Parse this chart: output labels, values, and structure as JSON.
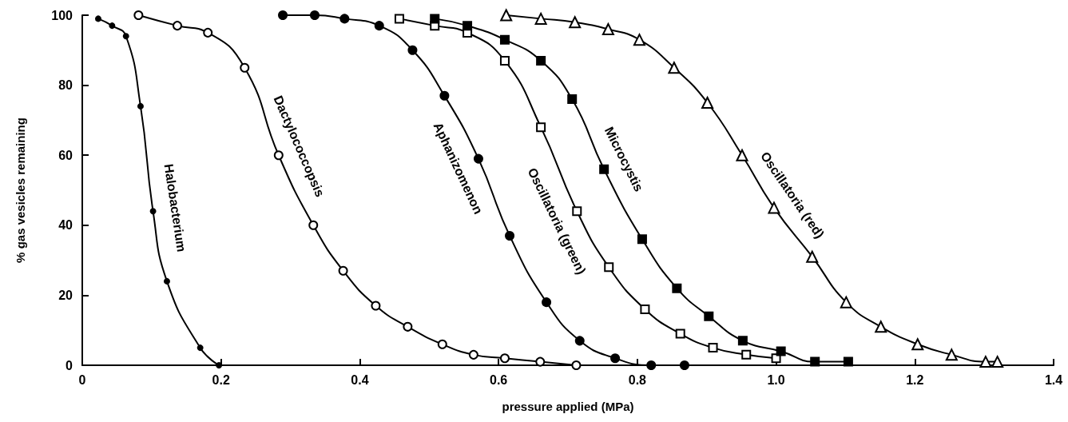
{
  "chart_data": {
    "type": "line",
    "xlabel": "pressure applied (MPa)",
    "ylabel": "% gas vesicles remaining",
    "xlim": [
      0,
      1.4
    ],
    "xticks": [
      0,
      0.2,
      0.4,
      0.6,
      0.8,
      {
        "value": 1,
        "label": "1.0"
      },
      1.2,
      1.4
    ],
    "ylim": [
      0,
      100
    ],
    "yticks": [
      0,
      20,
      40,
      60,
      80,
      100
    ],
    "grid": false,
    "legend": false,
    "line_style": "solid",
    "series": [
      {
        "name": "Halobacterium",
        "color": "#000000",
        "marker": "circle",
        "x": [
          0.023,
          0.043,
          0.063,
          0.084,
          0.102,
          0.122,
          0.17,
          0.197
        ],
        "values": [
          99,
          97,
          94,
          74,
          44,
          24,
          5,
          0
        ]
      },
      {
        "name": "Dactylococcopsis",
        "color": "#000000",
        "marker": "circle",
        "x": [
          0.081,
          0.137,
          0.181,
          0.234,
          0.283,
          0.333,
          0.376,
          0.423,
          0.469,
          0.519,
          0.564,
          0.609,
          0.66,
          0.712
        ],
        "values": [
          100,
          97,
          95,
          85,
          60,
          40,
          27,
          17,
          11,
          6,
          3,
          2,
          1,
          0
        ]
      },
      {
        "name": "Aphanizomenon",
        "color": "#000000",
        "marker": "circle",
        "x": [
          0.289,
          0.335,
          0.378,
          0.428,
          0.476,
          0.522,
          0.571,
          0.616,
          0.669,
          0.717,
          0.768,
          0.82,
          0.868
        ],
        "values": [
          100,
          100,
          99,
          97,
          90,
          77,
          59,
          37,
          18,
          7,
          2,
          0,
          0
        ]
      },
      {
        "name": "Oscillatoria (green)",
        "color": "#000000",
        "marker": "square",
        "x": [
          0.457,
          0.508,
          0.555,
          0.609,
          0.661,
          0.713,
          0.759,
          0.811,
          0.862,
          0.909,
          0.957,
          1.0
        ],
        "values": [
          99,
          97,
          95,
          87,
          68,
          44,
          28,
          16,
          9,
          5,
          3,
          2
        ]
      },
      {
        "name": "Microcystis",
        "color": "#000000",
        "marker": "square",
        "x": [
          0.508,
          0.555,
          0.609,
          0.661,
          0.706,
          0.752,
          0.807,
          0.857,
          0.903,
          0.952,
          1.007,
          1.056,
          1.104
        ],
        "values": [
          99,
          97,
          93,
          87,
          76,
          56,
          36,
          22,
          14,
          7,
          4,
          1,
          1
        ]
      },
      {
        "name": "Oscillatoria (red)",
        "color": "#000000",
        "marker": "triangle",
        "x": [
          0.611,
          0.661,
          0.71,
          0.758,
          0.803,
          0.853,
          0.901,
          0.951,
          0.997,
          1.052,
          1.101,
          1.151,
          1.204,
          1.253,
          1.302,
          1.319
        ],
        "values": [
          100,
          99,
          98,
          96,
          93,
          85,
          75,
          60,
          45,
          31,
          18,
          11,
          6,
          3,
          1,
          1
        ]
      }
    ]
  }
}
